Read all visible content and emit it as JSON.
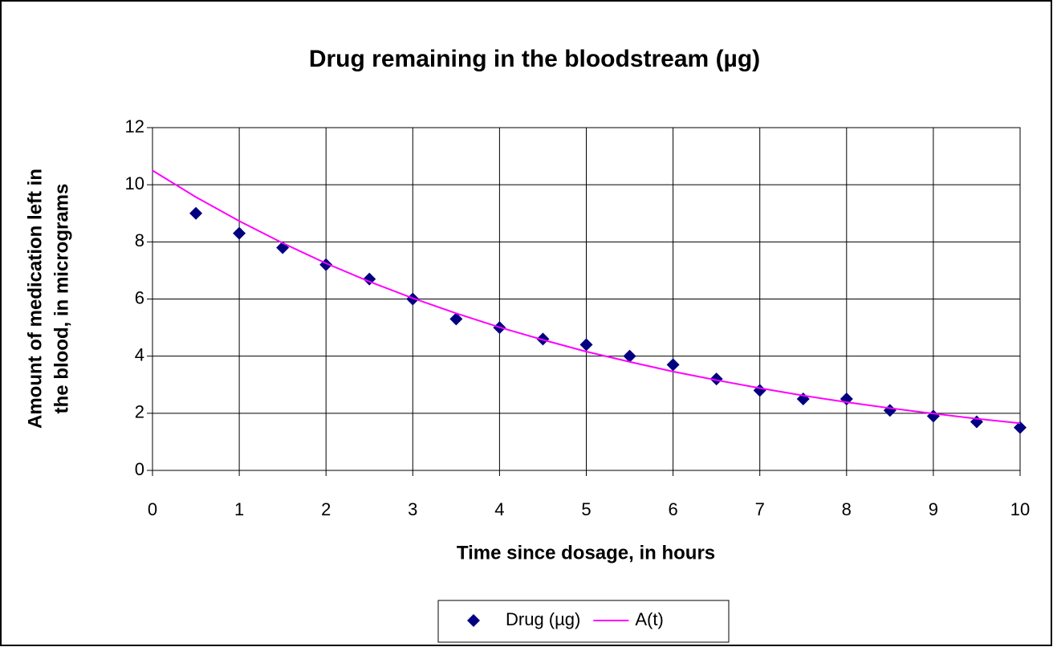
{
  "chart_data": {
    "type": "scatter",
    "title": "Drug remaining in the bloodstream (µg)",
    "xlabel": "Time since dosage, in hours",
    "ylabel": [
      "Amount of medication left in",
      "the blood, in micrograms"
    ],
    "xlim": [
      0,
      10
    ],
    "xticks": [
      0,
      1,
      2,
      3,
      4,
      5,
      6,
      7,
      8,
      9,
      10
    ],
    "ylim": [
      0,
      12
    ],
    "yticks": [
      0,
      2,
      4,
      6,
      8,
      10,
      12
    ],
    "grid": true,
    "legend": "bottom",
    "series": [
      {
        "name": "Drug (µg)",
        "type": "scatter",
        "color": "#000080",
        "x": [
          0.5,
          1,
          1.5,
          2,
          2.5,
          3,
          3.5,
          4,
          4.5,
          5,
          5.5,
          6,
          6.5,
          7,
          7.5,
          8,
          8.5,
          9,
          9.5,
          10
        ],
        "values": [
          9.0,
          8.3,
          7.8,
          7.2,
          6.7,
          6.0,
          5.3,
          5.0,
          4.6,
          4.4,
          4.0,
          3.7,
          3.2,
          2.8,
          2.5,
          2.5,
          2.1,
          1.9,
          1.7,
          1.5
        ]
      },
      {
        "name": "A(t)",
        "type": "line",
        "color": "#ff00ff",
        "x": [
          0,
          0.5,
          1,
          1.5,
          2,
          2.5,
          3,
          3.5,
          4,
          4.5,
          5,
          5.5,
          6,
          6.5,
          7,
          7.5,
          8,
          8.5,
          9,
          9.5,
          10
        ],
        "values": [
          10.5,
          9.57,
          8.73,
          7.96,
          7.25,
          6.61,
          6.03,
          5.5,
          5.01,
          4.57,
          4.16,
          3.8,
          3.46,
          3.16,
          2.88,
          2.62,
          2.39,
          2.18,
          1.99,
          1.81,
          1.65
        ]
      }
    ]
  }
}
